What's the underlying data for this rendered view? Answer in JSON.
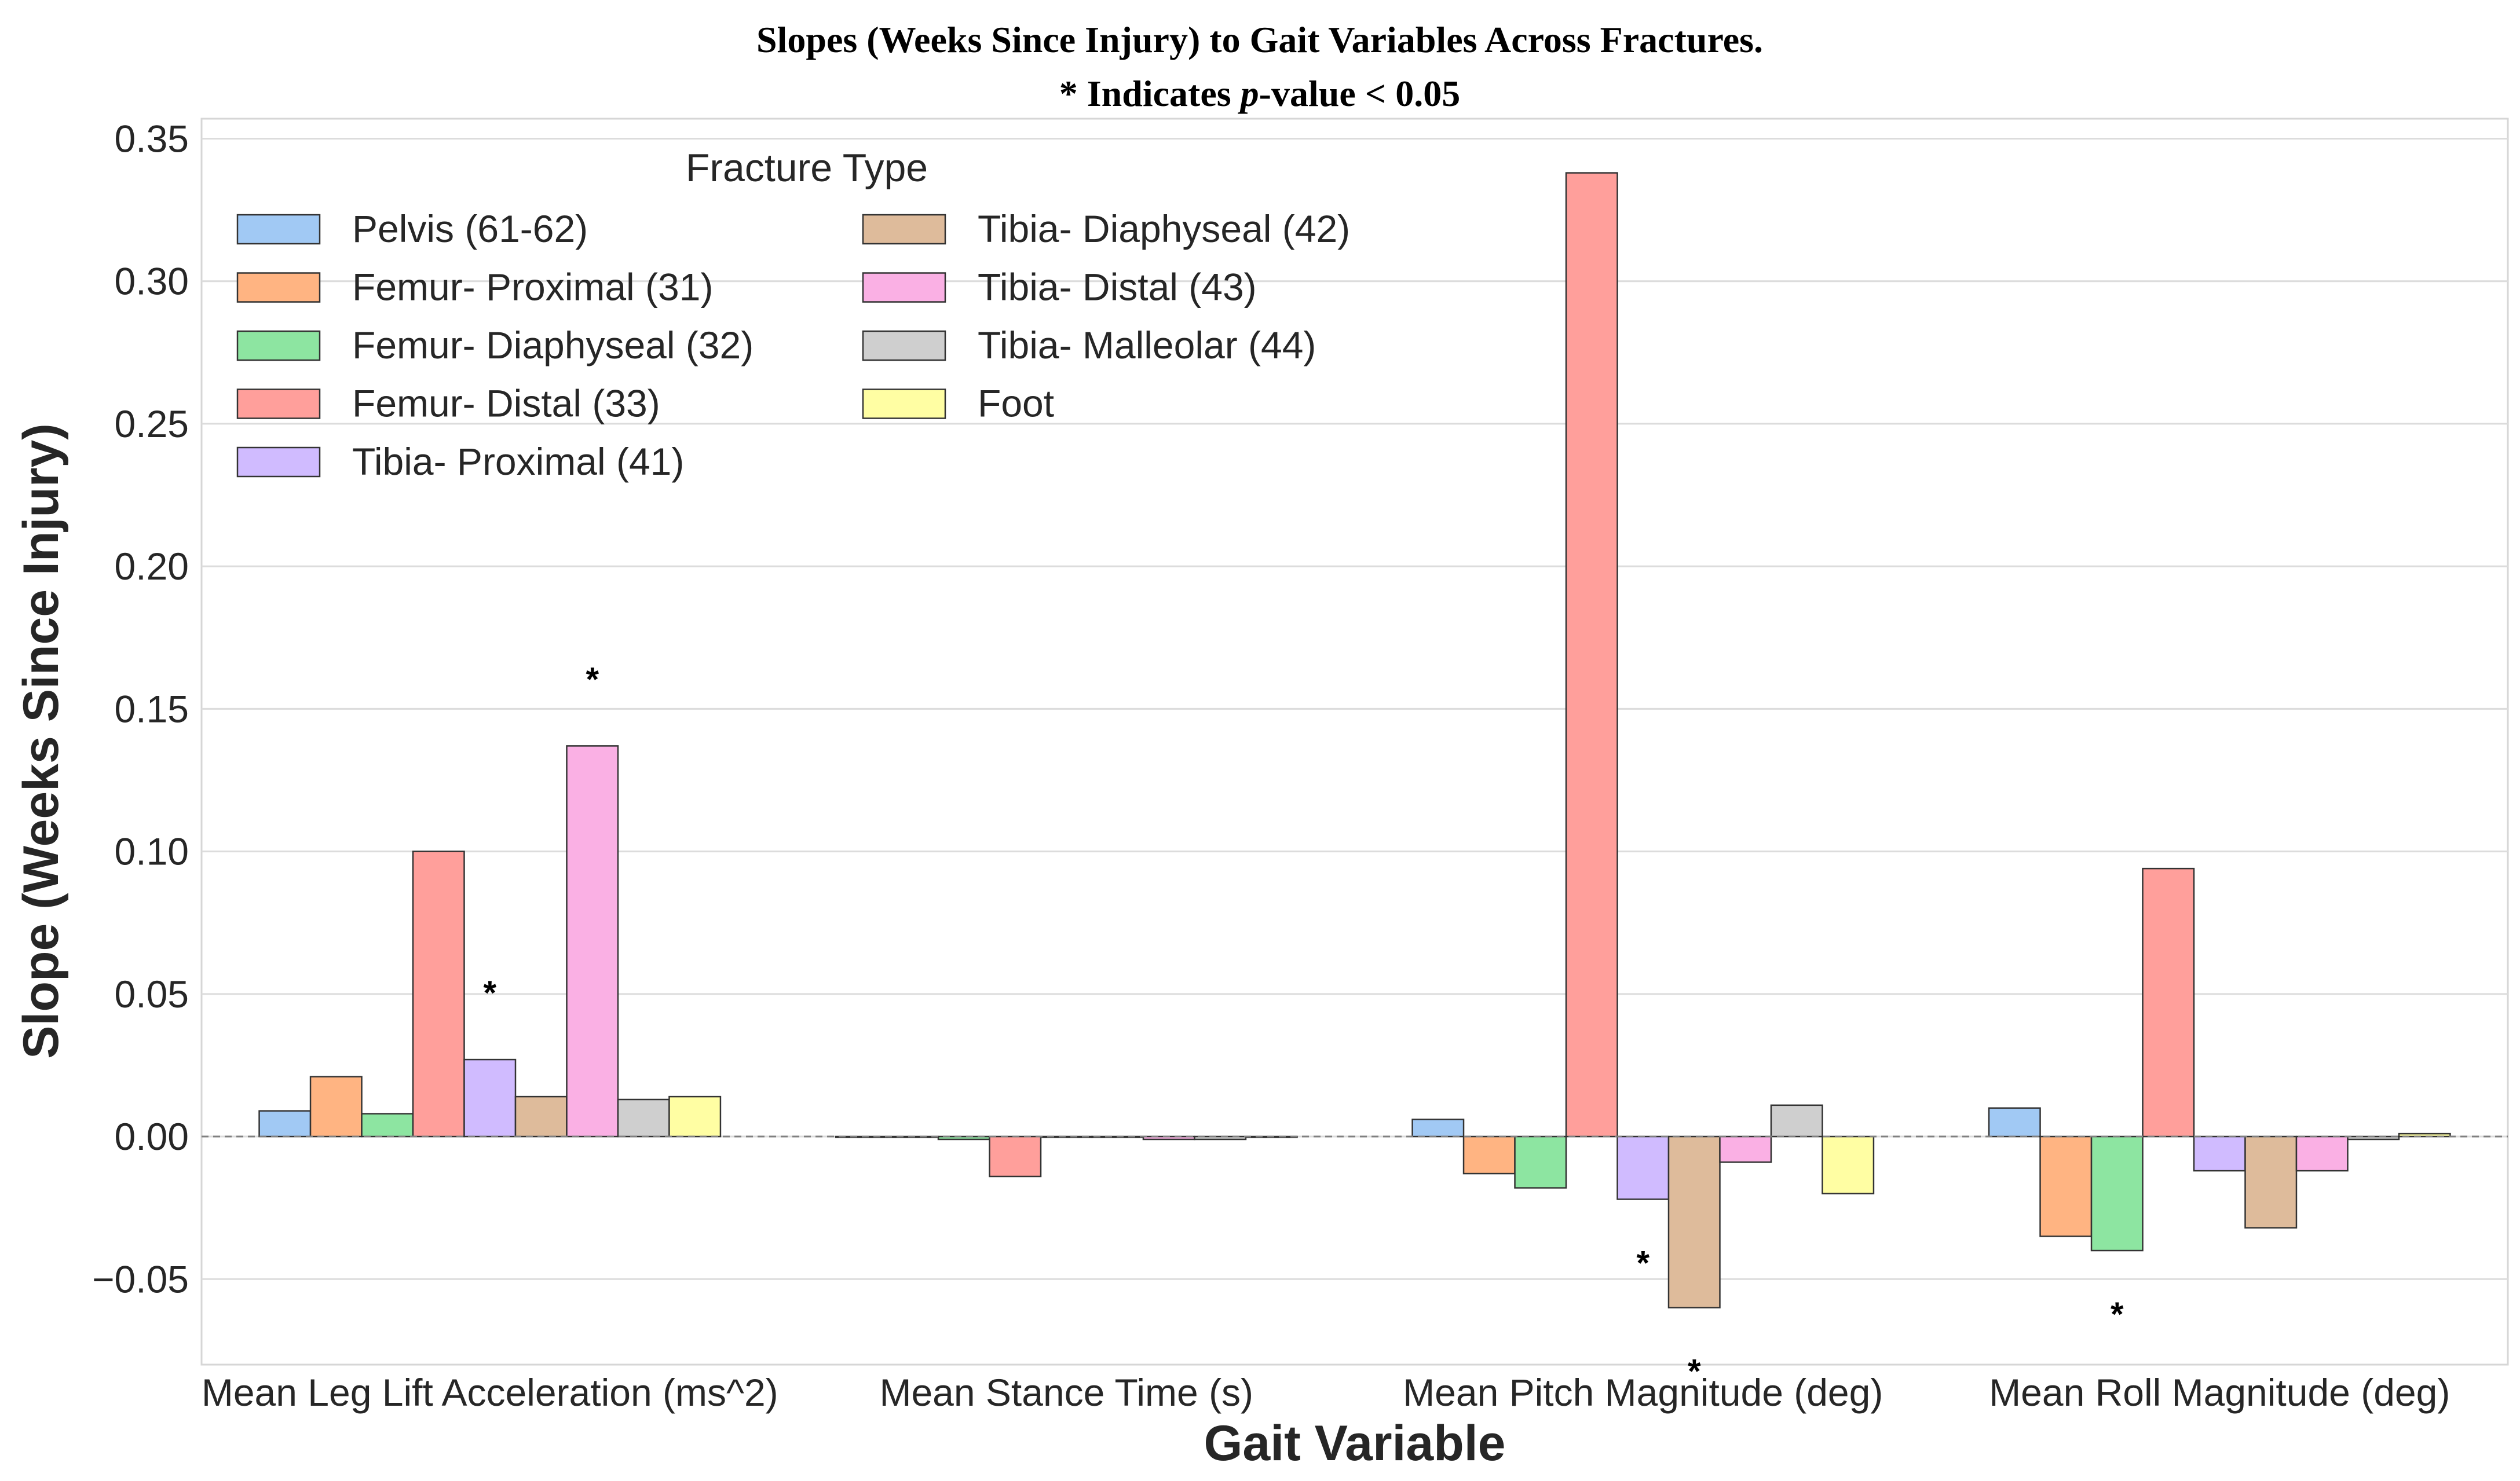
{
  "chart_data": {
    "type": "bar",
    "title_line1": "Slopes (Weeks Since Injury) to Gait Variables Across Fractures.",
    "title_line2_prefix": "* Indicates ",
    "title_line2_italic": "p",
    "title_line2_suffix": "-value < 0.05",
    "xlabel": "Gait Variable",
    "ylabel": "Slope (Weeks Since Injury)",
    "ylim": [
      -0.08,
      0.357
    ],
    "yticks": [
      -0.05,
      0.0,
      0.05,
      0.1,
      0.15,
      0.2,
      0.25,
      0.3,
      0.35
    ],
    "ytick_labels": [
      "−0.05",
      "0.00",
      "0.05",
      "0.10",
      "0.15",
      "0.20",
      "0.25",
      "0.30",
      "0.35"
    ],
    "grid": true,
    "zero_line": "dashed",
    "legend_title": "Fracture Type",
    "legend_position": "top-left",
    "categories": [
      "Mean Leg Lift Acceleration (ms^2)",
      "Mean Stance Time (s)",
      "Mean Pitch Magnitude (deg)",
      "Mean Roll Magnitude (deg)"
    ],
    "series": [
      {
        "name": "Pelvis (61-62)",
        "color": "#a1c9f4",
        "values": [
          0.009,
          0.0,
          0.006,
          0.01
        ],
        "significant": [
          false,
          false,
          false,
          false
        ]
      },
      {
        "name": "Femur- Proximal (31)",
        "color": "#ffb482",
        "values": [
          0.021,
          0.0,
          -0.013,
          -0.035
        ],
        "significant": [
          false,
          false,
          false,
          false
        ]
      },
      {
        "name": "Femur- Diaphyseal (32)",
        "color": "#8de5a1",
        "values": [
          0.008,
          -0.001,
          -0.018,
          -0.04
        ],
        "significant": [
          false,
          false,
          false,
          true
        ]
      },
      {
        "name": "Femur- Distal (33)",
        "color": "#ff9f9b",
        "values": [
          0.1,
          -0.014,
          0.338,
          0.094
        ],
        "significant": [
          false,
          false,
          false,
          false
        ]
      },
      {
        "name": "Tibia- Proximal (41)",
        "color": "#d0bbff",
        "values": [
          0.027,
          0.0,
          -0.022,
          -0.012
        ],
        "significant": [
          true,
          false,
          true,
          false
        ]
      },
      {
        "name": "Tibia- Diaphyseal (42)",
        "color": "#debb9b",
        "values": [
          0.014,
          0.0,
          -0.06,
          -0.032
        ],
        "significant": [
          false,
          false,
          true,
          false
        ]
      },
      {
        "name": "Tibia- Distal (43)",
        "color": "#fab0e4",
        "values": [
          0.137,
          -0.001,
          -0.009,
          -0.012
        ],
        "significant": [
          true,
          false,
          false,
          false
        ]
      },
      {
        "name": "Tibia- Malleolar (44)",
        "color": "#cfcfcf",
        "values": [
          0.013,
          -0.001,
          0.011,
          -0.001
        ],
        "significant": [
          false,
          false,
          false,
          false
        ]
      },
      {
        "name": "Foot",
        "color": "#fffea3",
        "values": [
          0.014,
          0.0,
          -0.02,
          0.001
        ],
        "significant": [
          false,
          false,
          false,
          false
        ]
      }
    ],
    "significance_marker": "*"
  }
}
